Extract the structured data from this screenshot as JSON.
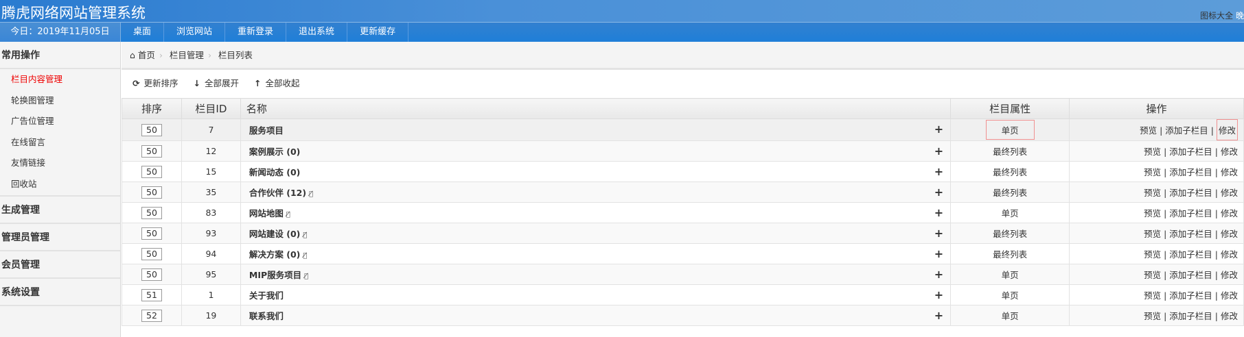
{
  "header": {
    "title": "腾虎网络网站管理系统",
    "icon_library": "图标大全",
    "user_greeting": "晚"
  },
  "navbar": {
    "today": "今日：2019年11月05日",
    "items": [
      "桌面",
      "浏览网站",
      "重新登录",
      "退出系统",
      "更新缓存"
    ]
  },
  "sidebar": {
    "sections": [
      {
        "label": "常用操作",
        "items": [
          "栏目内容管理",
          "轮换图管理",
          "广告位管理",
          "在线留言",
          "友情链接",
          "回收站"
        ],
        "active": "栏目内容管理"
      },
      {
        "label": "生成管理"
      },
      {
        "label": "管理员管理"
      },
      {
        "label": "会员管理"
      },
      {
        "label": "系统设置"
      }
    ]
  },
  "breadcrumb": [
    "首页",
    "栏目管理",
    "栏目列表"
  ],
  "toolbar": {
    "refresh_sort": "更新排序",
    "expand_all": "全部展开",
    "collapse_all": "全部收起"
  },
  "table": {
    "headers": [
      "排序",
      "栏目ID",
      "名称",
      "栏目属性",
      "操作"
    ],
    "actions": {
      "preview": "预览",
      "add_child": "添加子栏目",
      "edit": "修改"
    },
    "rows": [
      {
        "order": "50",
        "id": "7",
        "name": "服务项目",
        "hidden": false,
        "attr": "单页"
      },
      {
        "order": "50",
        "id": "12",
        "name": "案例展示 (0)",
        "hidden": false,
        "attr": "最终列表"
      },
      {
        "order": "50",
        "id": "15",
        "name": "新闻动态 (0)",
        "hidden": false,
        "attr": "最终列表"
      },
      {
        "order": "50",
        "id": "35",
        "name": "合作伙伴 (12)",
        "hidden": true,
        "attr": "最终列表"
      },
      {
        "order": "50",
        "id": "83",
        "name": "网站地图",
        "hidden": true,
        "attr": "单页"
      },
      {
        "order": "50",
        "id": "93",
        "name": "网站建设 (0)",
        "hidden": true,
        "attr": "最终列表"
      },
      {
        "order": "50",
        "id": "94",
        "name": "解决方案 (0)",
        "hidden": true,
        "attr": "最终列表"
      },
      {
        "order": "50",
        "id": "95",
        "name": "MIP服务项目",
        "hidden": true,
        "attr": "单页"
      },
      {
        "order": "51",
        "id": "1",
        "name": "关于我们",
        "hidden": false,
        "attr": "单页"
      },
      {
        "order": "52",
        "id": "19",
        "name": "联系我们",
        "hidden": false,
        "attr": "单页"
      }
    ]
  },
  "colors": {
    "header_blue": "#2a7bd0",
    "active_item": "#ee0000",
    "highlight_box": "#f09090"
  }
}
